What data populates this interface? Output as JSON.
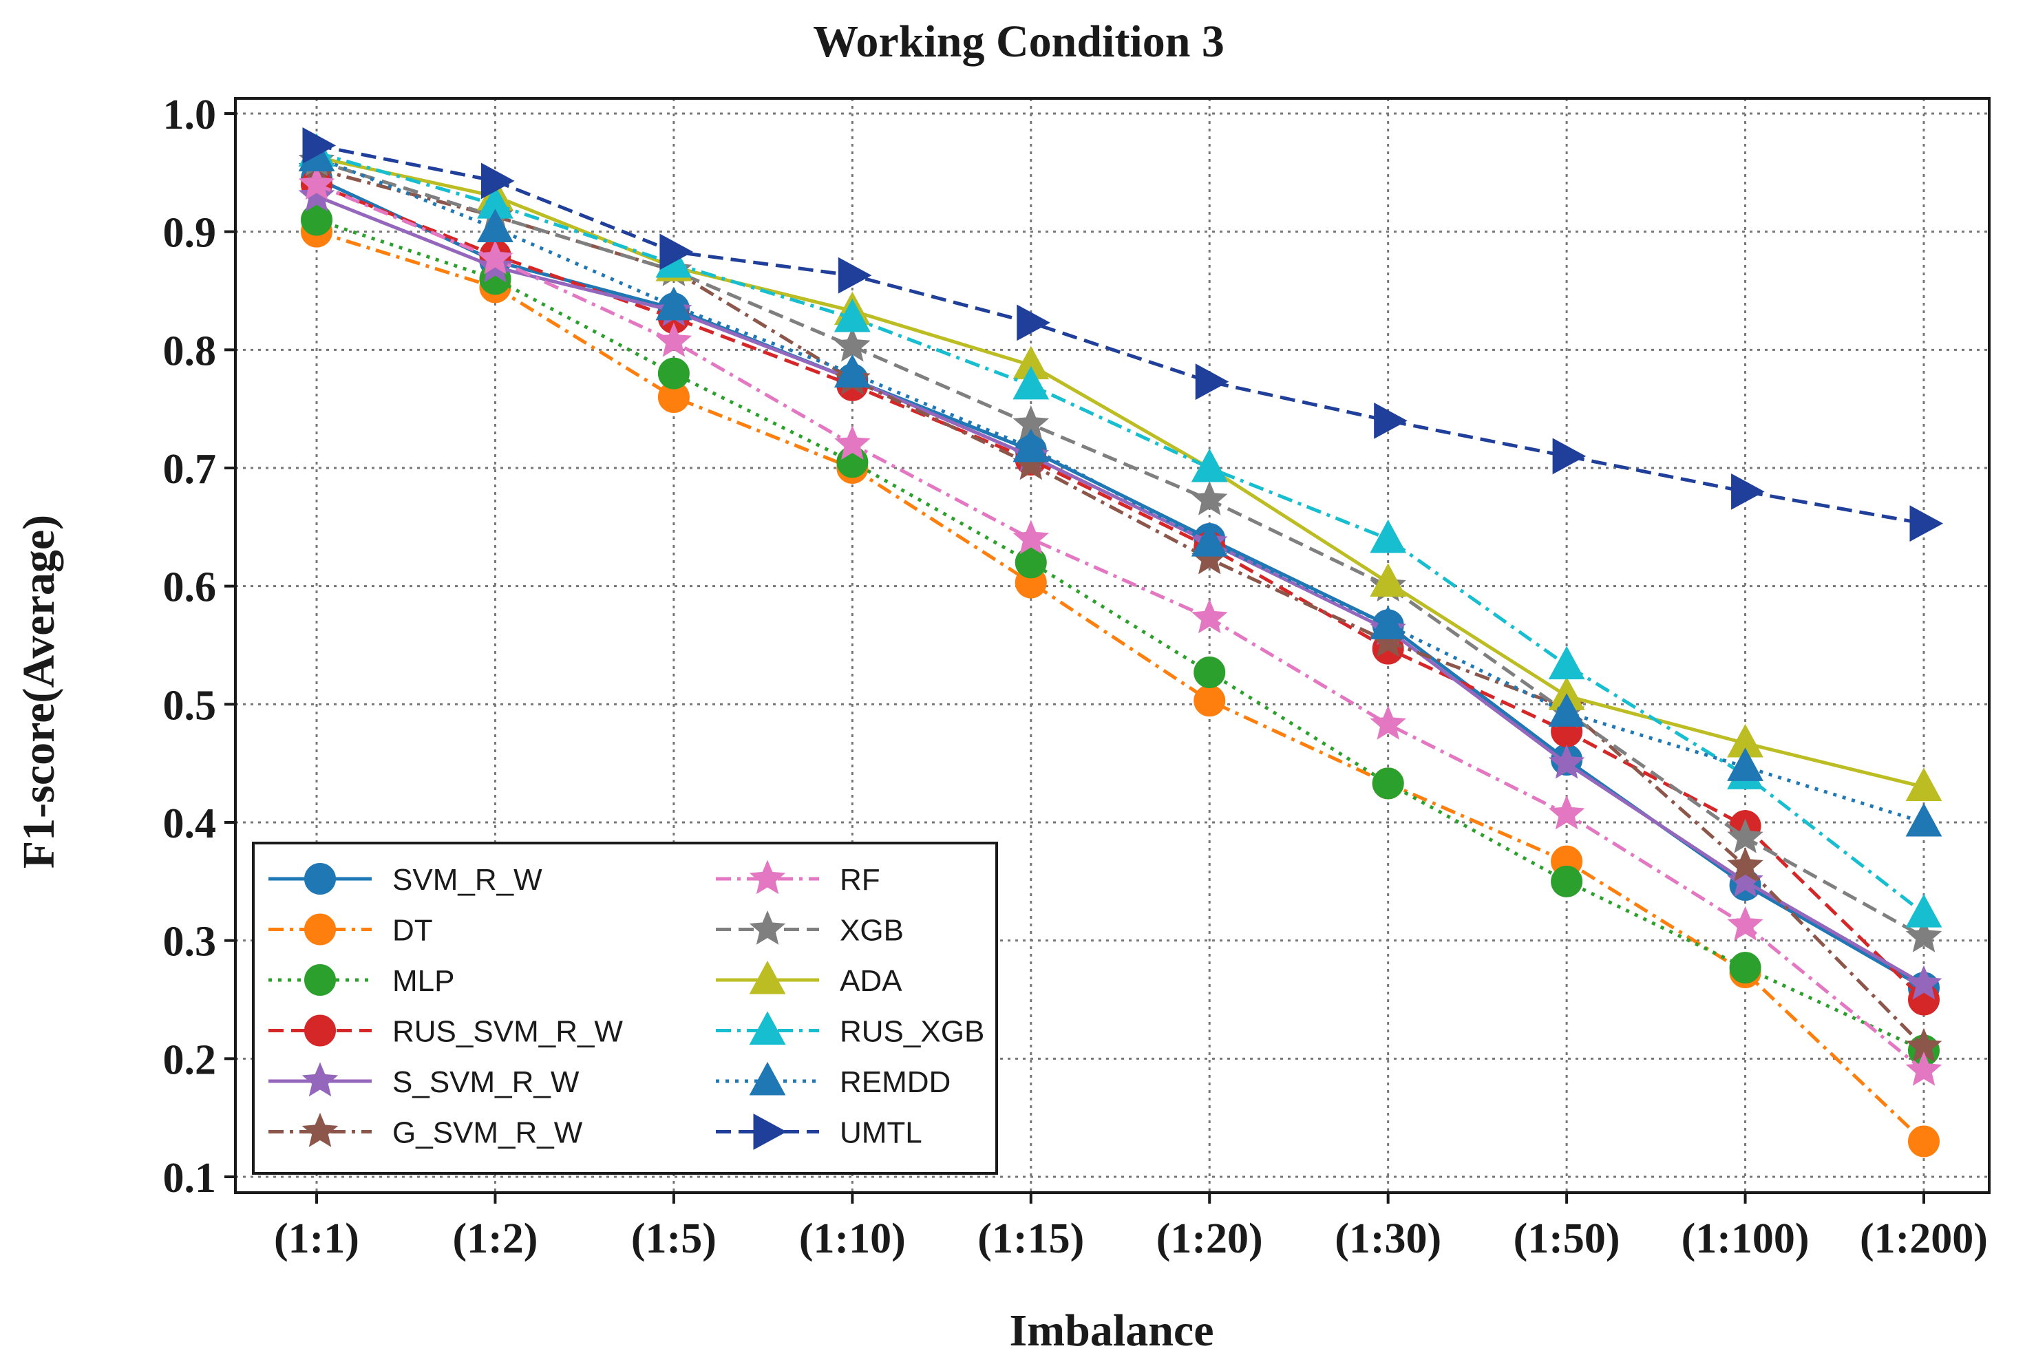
{
  "chart_data": {
    "type": "line",
    "title": "Working Condition 3",
    "xlabel": "Imbalance",
    "ylabel": "F1-score(Average)",
    "ylim": [
      0.1,
      1.0
    ],
    "yticks": [
      "0.1",
      "0.2",
      "0.3",
      "0.4",
      "0.5",
      "0.6",
      "0.7",
      "0.8",
      "0.9",
      "1.0"
    ],
    "grid": true,
    "legend_position": "lower-left",
    "categories": [
      "(1:1)",
      "(1:2)",
      "(1:5)",
      "(1:10)",
      "(1:15)",
      "(1:20)",
      "(1:30)",
      "(1:50)",
      "(1:100)",
      "(1:200)"
    ],
    "series": [
      {
        "name": "SVM_R_W",
        "color": "#1f77b4",
        "marker": "circle",
        "dash": "solid",
        "values": [
          0.945,
          0.875,
          0.835,
          0.775,
          0.715,
          0.64,
          0.567,
          0.453,
          0.347,
          0.26
        ]
      },
      {
        "name": "DT",
        "color": "#ff7f0e",
        "marker": "circle",
        "dash": "dashdot",
        "values": [
          0.9,
          0.853,
          0.76,
          0.7,
          0.603,
          0.503,
          0.433,
          0.367,
          0.273,
          0.13
        ]
      },
      {
        "name": "MLP",
        "color": "#2ca02c",
        "marker": "circle",
        "dash": "dotted",
        "values": [
          0.91,
          0.86,
          0.78,
          0.705,
          0.62,
          0.527,
          0.433,
          0.35,
          0.277,
          0.207
        ]
      },
      {
        "name": "RUS_SVM_R_W",
        "color": "#d62728",
        "marker": "circle",
        "dash": "dashed",
        "values": [
          0.94,
          0.88,
          0.827,
          0.77,
          0.707,
          0.633,
          0.547,
          0.477,
          0.397,
          0.25
        ]
      },
      {
        "name": "S_SVM_R_W",
        "color": "#9467bd",
        "marker": "star",
        "dash": "solid",
        "values": [
          0.93,
          0.87,
          0.833,
          0.775,
          0.71,
          0.637,
          0.563,
          0.45,
          0.35,
          0.263
        ]
      },
      {
        "name": "G_SVM_R_W",
        "color": "#8c564b",
        "marker": "star",
        "dash": "dashdot",
        "values": [
          0.953,
          0.913,
          0.867,
          0.775,
          0.703,
          0.623,
          0.553,
          0.497,
          0.363,
          0.21
        ]
      },
      {
        "name": "RF",
        "color": "#e377c2",
        "marker": "star",
        "dash": "dashdot",
        "values": [
          0.94,
          0.877,
          0.807,
          0.72,
          0.64,
          0.573,
          0.483,
          0.407,
          0.313,
          0.19
        ]
      },
      {
        "name": "XGB",
        "color": "#7f7f7f",
        "marker": "star",
        "dash": "dashed",
        "values": [
          0.96,
          0.913,
          0.867,
          0.803,
          0.737,
          0.673,
          0.6,
          0.493,
          0.387,
          0.303
        ]
      },
      {
        "name": "ADA",
        "color": "#bcbd22",
        "marker": "triangle-up",
        "dash": "solid",
        "values": [
          0.963,
          0.93,
          0.87,
          0.833,
          0.787,
          0.7,
          0.603,
          0.507,
          0.467,
          0.43
        ]
      },
      {
        "name": "RUS_XGB",
        "color": "#17becf",
        "marker": "triangle-up",
        "dash": "dashdot",
        "values": [
          0.967,
          0.923,
          0.873,
          0.827,
          0.77,
          0.7,
          0.64,
          0.533,
          0.44,
          0.323
        ]
      },
      {
        "name": "REMDD",
        "color": "#1f77b4",
        "marker": "triangle-up",
        "dash": "dotted",
        "values": [
          0.963,
          0.903,
          0.837,
          0.78,
          0.717,
          0.637,
          0.567,
          0.493,
          0.447,
          0.4
        ]
      },
      {
        "name": "UMTL",
        "color": "#1f3f9a",
        "marker": "triangle-right",
        "dash": "dashed",
        "values": [
          0.973,
          0.943,
          0.883,
          0.863,
          0.823,
          0.773,
          0.74,
          0.71,
          0.68,
          0.653
        ]
      }
    ]
  }
}
